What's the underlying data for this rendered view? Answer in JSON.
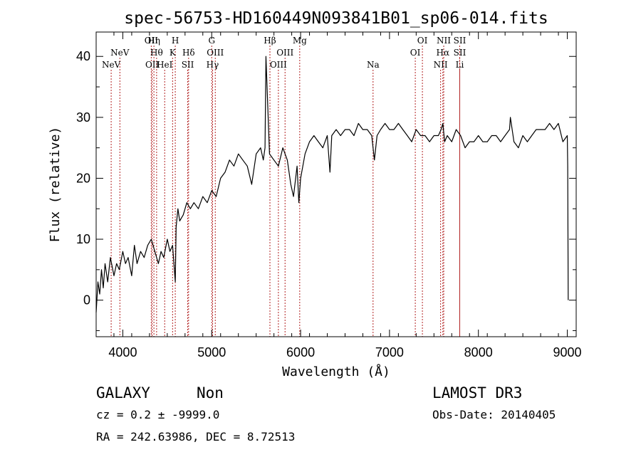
{
  "chart_data": {
    "type": "line",
    "title": "spec-56753-HD160449N093841B01_sp06-014.fits",
    "xlabel": "Wavelength (Å)",
    "ylabel": "Flux (relative)",
    "xlim": [
      3700,
      9100
    ],
    "ylim": [
      -6,
      44
    ],
    "x_ticks": [
      4000,
      5000,
      6000,
      7000,
      8000,
      9000
    ],
    "y_ticks": [
      0,
      10,
      20,
      30,
      40
    ],
    "line_color": "#000000",
    "marker_color": "#b22222",
    "series": [
      {
        "x": [
          3700,
          3720,
          3740,
          3760,
          3780,
          3800,
          3830,
          3860,
          3900,
          3930,
          3960,
          4000,
          4030,
          4060,
          4100,
          4130,
          4160,
          4200,
          4240,
          4280,
          4320,
          4360,
          4400,
          4430,
          4460,
          4500,
          4530,
          4560,
          4590,
          4600,
          4620,
          4640,
          4680,
          4720,
          4760,
          4800,
          4850,
          4900,
          4950,
          5000,
          5050,
          5100,
          5150,
          5200,
          5250,
          5300,
          5350,
          5400,
          5450,
          5500,
          5550,
          5580,
          5600,
          5610,
          5650,
          5700,
          5750,
          5800,
          5850,
          5890,
          5920,
          5960,
          5980,
          6000,
          6050,
          6100,
          6150,
          6200,
          6250,
          6300,
          6330,
          6350,
          6400,
          6450,
          6500,
          6550,
          6600,
          6650,
          6700,
          6750,
          6800,
          6830,
          6860,
          6900,
          6950,
          7000,
          7050,
          7100,
          7150,
          7200,
          7250,
          7300,
          7350,
          7400,
          7450,
          7500,
          7550,
          7580,
          7600,
          7620,
          7650,
          7700,
          7750,
          7800,
          7850,
          7900,
          7950,
          8000,
          8050,
          8100,
          8150,
          8200,
          8250,
          8300,
          8350,
          8360,
          8400,
          8450,
          8500,
          8550,
          8600,
          8650,
          8700,
          8750,
          8800,
          8850,
          8900,
          8950,
          9000,
          9005,
          9010
        ],
        "y": [
          -2,
          3,
          1,
          5,
          2,
          6,
          3,
          7,
          4,
          6,
          5,
          8,
          6,
          7,
          4,
          9,
          6,
          8,
          7,
          9,
          10,
          8,
          6,
          8,
          7,
          10,
          8,
          9,
          3,
          12,
          15,
          13,
          14,
          16,
          15,
          16,
          15,
          17,
          16,
          18,
          17,
          20,
          21,
          23,
          22,
          24,
          23,
          22,
          19,
          24,
          25,
          23,
          25,
          40,
          24,
          23,
          22,
          25,
          23,
          19,
          17,
          22,
          16,
          20,
          24,
          26,
          27,
          26,
          25,
          27,
          21,
          27,
          28,
          27,
          28,
          28,
          27,
          29,
          28,
          28,
          27,
          23,
          27,
          28,
          29,
          28,
          28,
          29,
          28,
          27,
          26,
          28,
          27,
          27,
          26,
          27,
          27,
          28,
          29,
          26,
          27,
          26,
          28,
          27,
          25,
          26,
          26,
          27,
          26,
          26,
          27,
          27,
          26,
          27,
          28,
          30,
          26,
          25,
          27,
          26,
          27,
          28,
          28,
          28,
          29,
          28,
          29,
          26,
          27,
          22,
          0
        ]
      }
    ],
    "line_markers": [
      {
        "label": "NeV",
        "x": 3869,
        "row": 2
      },
      {
        "label": "NeV",
        "x": 3967,
        "row": 1
      },
      {
        "label": "OII",
        "x": 4320,
        "row": 0
      },
      {
        "label": "Hη",
        "x": 4350,
        "row": 0
      },
      {
        "label": "Hθ",
        "x": 4380,
        "row": 1
      },
      {
        "label": "OII",
        "x": 4330,
        "row": 2
      },
      {
        "label": "H",
        "x": 4590,
        "row": 0
      },
      {
        "label": "K",
        "x": 4560,
        "row": 1
      },
      {
        "label": "HeI",
        "x": 4471,
        "row": 2
      },
      {
        "label": "Hδ",
        "x": 4740,
        "row": 1
      },
      {
        "label": "SII",
        "x": 4730,
        "row": 2
      },
      {
        "label": "G",
        "x": 5000,
        "row": 0
      },
      {
        "label": "OIII",
        "x": 5040,
        "row": 1
      },
      {
        "label": "Hγ",
        "x": 5010,
        "row": 2
      },
      {
        "label": "Hβ",
        "x": 5655,
        "row": 0
      },
      {
        "label": "OIII",
        "x": 5825,
        "row": 1
      },
      {
        "label": "OIII",
        "x": 5750,
        "row": 2
      },
      {
        "label": "Mg",
        "x": 5990,
        "row": 0
      },
      {
        "label": "Na",
        "x": 6815,
        "row": 2
      },
      {
        "label": "OI",
        "x": 7370,
        "row": 0
      },
      {
        "label": "OI",
        "x": 7290,
        "row": 1
      },
      {
        "label": "NII",
        "x": 7610,
        "row": 0
      },
      {
        "label": "Hα",
        "x": 7600,
        "row": 1
      },
      {
        "label": "NII",
        "x": 7575,
        "row": 2
      },
      {
        "label": "SII",
        "x": 7790,
        "row": 0
      },
      {
        "label": "SII",
        "x": 7790,
        "row": 1
      },
      {
        "label": "Li",
        "x": 7790,
        "row": 2
      }
    ]
  },
  "info": {
    "class": "GALAXY",
    "subclass": "Non",
    "survey": "LAMOST DR3",
    "cz": "cz = 0.2 ± -9999.0",
    "obs_date": "Obs-Date: 20140405",
    "radec": "RA = 242.63986, DEC =   8.72513"
  }
}
